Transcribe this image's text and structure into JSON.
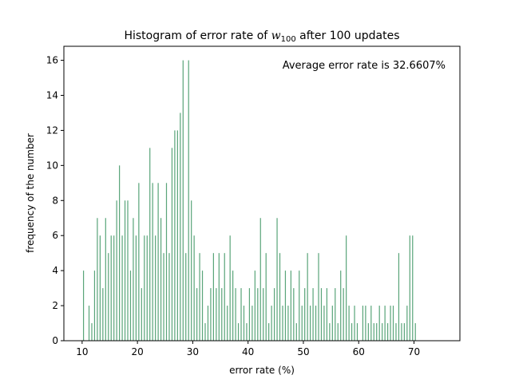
{
  "chart_data": {
    "type": "histogram",
    "title": "Histogram of error rate of",
    "title_var": "w",
    "title_subscript": "100",
    "title_end": "after 100 updates",
    "annotation": "Average error rate is 32.6607%",
    "xlabel": "error rate (%)",
    "ylabel": "frequency of the number",
    "color": "#5aa57a",
    "bins": [
      10,
      10.5,
      11,
      11.5,
      12,
      12.5,
      13,
      13.5,
      14,
      14.5,
      15,
      15.5,
      16,
      16.5,
      17,
      17.5,
      18,
      18.5,
      19,
      19.5,
      20,
      20.5,
      21,
      21.5,
      22,
      22.5,
      23,
      23.5,
      24,
      24.5,
      25,
      25.5,
      26,
      26.5,
      27,
      27.5,
      28,
      28.5,
      29,
      29.5,
      30,
      30.5,
      31,
      31.5,
      32,
      32.5,
      33,
      33.5,
      34,
      34.5,
      35,
      35.5,
      36,
      36.5,
      37,
      37.5,
      38,
      38.5,
      39,
      39.5,
      40,
      40.5,
      41,
      41.5,
      42,
      42.5,
      43,
      43.5,
      44,
      44.5,
      45,
      45.5,
      46,
      46.5,
      47,
      47.5,
      48,
      48.5,
      49,
      49.5,
      50,
      50.5,
      51,
      51.5,
      52,
      52.5,
      53,
      53.5,
      54,
      54.5,
      55,
      55.5,
      56,
      56.5,
      57,
      57.5,
      58,
      58.5,
      59,
      59.5,
      60,
      60.5,
      61,
      61.5,
      62,
      62.5,
      63,
      63.5,
      64,
      64.5,
      65,
      65.5,
      66,
      66.5,
      67,
      67.5,
      68,
      68.5,
      69,
      69.5,
      70,
      70.5,
      71,
      71.5,
      72,
      72.5,
      73,
      73.5,
      74,
      74.5,
      75
    ],
    "values": [
      4,
      0,
      2,
      1,
      4,
      7,
      6,
      3,
      7,
      5,
      6,
      6,
      8,
      10,
      6,
      8,
      8,
      4,
      7,
      6,
      9,
      3,
      6,
      6,
      11,
      9,
      6,
      9,
      7,
      5,
      9,
      5,
      11,
      12,
      12,
      13,
      16,
      5,
      16,
      8,
      6,
      3,
      5,
      4,
      1,
      2,
      3,
      5,
      3,
      5,
      3,
      5,
      2,
      6,
      4,
      3,
      1,
      3,
      2,
      1,
      3,
      2,
      4,
      3,
      7,
      3,
      5,
      1,
      2,
      3,
      7,
      5,
      2,
      4,
      2,
      4,
      3,
      1,
      4,
      2,
      3,
      5,
      2,
      3,
      2,
      5,
      3,
      2,
      3,
      1,
      2,
      3,
      1,
      4,
      3,
      6,
      2,
      1,
      2,
      1,
      0,
      2,
      2,
      1,
      2,
      1,
      1,
      2,
      1,
      2,
      1,
      2,
      2,
      1,
      5,
      1,
      1,
      2,
      6,
      6,
      1,
      0,
      0,
      0,
      0,
      0,
      0,
      0,
      0,
      0
    ],
    "xlim": [
      6.7,
      78.3
    ],
    "ylim": [
      0,
      16.8
    ],
    "xticks": [
      10,
      20,
      30,
      40,
      50,
      60,
      70
    ],
    "yticks": [
      0,
      2,
      4,
      6,
      8,
      10,
      12,
      14,
      16
    ]
  }
}
